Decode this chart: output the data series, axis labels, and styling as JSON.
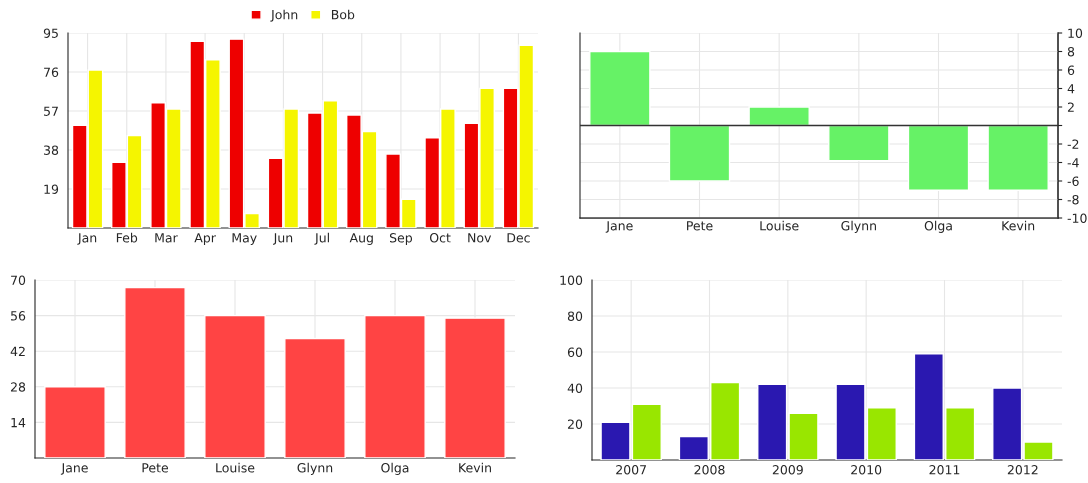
{
  "chart_data": [
    {
      "type": "bar",
      "categories": [
        "Jan",
        "Feb",
        "Mar",
        "Apr",
        "May",
        "Jun",
        "Jul",
        "Aug",
        "Sep",
        "Oct",
        "Nov",
        "Dec"
      ],
      "series": [
        {
          "name": "John",
          "color": "#ee0000",
          "values": [
            50,
            32,
            61,
            91,
            92,
            34,
            56,
            55,
            36,
            44,
            51,
            68
          ]
        },
        {
          "name": "Bob",
          "color": "#f5f500",
          "values": [
            77,
            45,
            58,
            82,
            7,
            58,
            62,
            47,
            14,
            58,
            68,
            89
          ]
        }
      ],
      "ylim": [
        0,
        95
      ],
      "yticks": [
        19,
        38,
        57,
        76,
        95
      ],
      "grid": true,
      "legend": "top"
    },
    {
      "type": "bar",
      "categories": [
        "Jane",
        "Pete",
        "Louise",
        "Glynn",
        "Olga",
        "Kevin"
      ],
      "series": [
        {
          "color": "#66f266",
          "axis": "y2",
          "values": [
            8,
            -6,
            2,
            -3.8,
            -7,
            -7
          ]
        }
      ],
      "y2lim": [
        -10,
        10
      ],
      "y2ticks": [
        -10,
        -8,
        -6,
        -4,
        -2,
        {
          "value": 0,
          "label": null
        },
        2,
        4,
        6,
        8,
        10
      ],
      "grid": true
    },
    {
      "type": "bar",
      "categories": [
        "Jane",
        "Pete",
        "Louise",
        "Glynn",
        "Olga",
        "Kevin"
      ],
      "series": [
        {
          "color": "#ff4444",
          "values": [
            28,
            67,
            56,
            47,
            56,
            55
          ]
        }
      ],
      "ylim": [
        0,
        70
      ],
      "yticks": [
        14,
        28,
        42,
        56,
        70
      ],
      "grid": true
    },
    {
      "type": "bar",
      "categories": [
        "2007",
        "2008",
        "2009",
        "2010",
        "2011",
        "2012"
      ],
      "series": [
        {
          "color": "#2a18b0",
          "values": [
            21,
            13,
            42,
            42,
            59,
            40
          ]
        },
        {
          "color": "#99e600",
          "values": [
            31,
            43,
            26,
            29,
            29,
            10
          ]
        }
      ],
      "ylim": [
        0,
        100
      ],
      "yticks": [
        20,
        40,
        60,
        80,
        100
      ],
      "grid": true
    }
  ]
}
